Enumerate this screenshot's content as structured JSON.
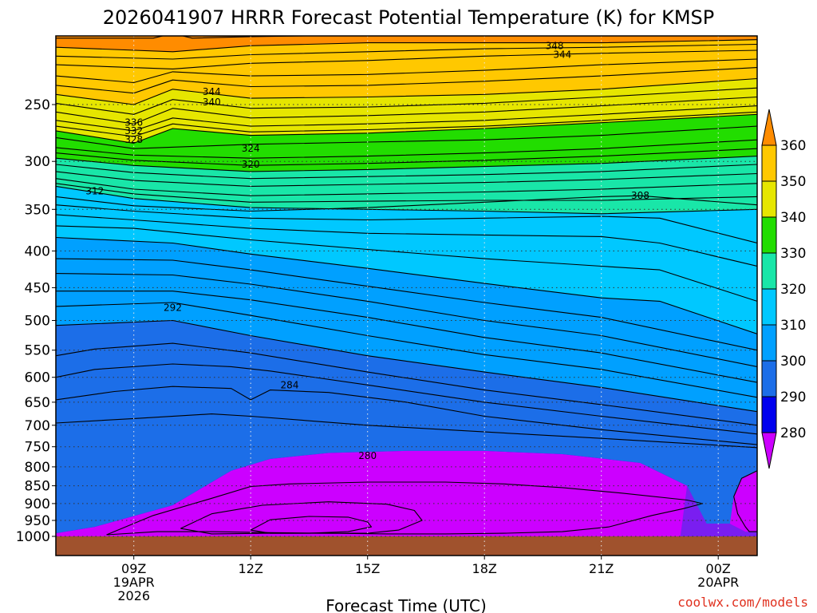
{
  "title": "2026041907 HRRR Forecast Potential Temperature (K) for KMSP",
  "watermark": "coolwx.com/models",
  "colors": {
    "fills": [
      "#cc00ff",
      "#7a1ef0",
      "#0000ee",
      "#1c6ee8",
      "#00a0ff",
      "#00c8ff",
      "#19e6a8",
      "#22dd00",
      "#e6e600",
      "#ffc800",
      "#ff8c00"
    ],
    "ground": "#a0522d",
    "watermark": "#e0301e"
  },
  "chart_data": {
    "type": "time-height contour (filled)",
    "title": "2026041907 HRRR Forecast Potential Temperature (K) for KMSP",
    "xlabel": "Forecast Time (UTC)",
    "ylabel": "",
    "x_range_hours": [
      7,
      25
    ],
    "y_range_hPa": [
      1020,
      200
    ],
    "x_ticks": [
      {
        "hour": 9,
        "label": "09Z",
        "sub1": "19APR",
        "sub2": "2026"
      },
      {
        "hour": 12,
        "label": "12Z",
        "sub1": "",
        "sub2": ""
      },
      {
        "hour": 15,
        "label": "15Z",
        "sub1": "",
        "sub2": ""
      },
      {
        "hour": 18,
        "label": "18Z",
        "sub1": "",
        "sub2": ""
      },
      {
        "hour": 21,
        "label": "21Z",
        "sub1": "",
        "sub2": ""
      },
      {
        "hour": 24,
        "label": "00Z",
        "sub1": "20APR",
        "sub2": ""
      }
    ],
    "y_ticks": [
      250,
      300,
      350,
      400,
      450,
      500,
      550,
      600,
      650,
      700,
      750,
      800,
      850,
      900,
      950,
      1000
    ],
    "grid": "dotted",
    "contour_interval_K": 2,
    "colorbar": {
      "levels": [
        280,
        290,
        300,
        310,
        320,
        330,
        340,
        350,
        360
      ],
      "labels": [
        "360",
        "350",
        "340",
        "330",
        "320",
        "310",
        "300",
        "290",
        "280"
      ]
    },
    "contour_labels": [
      {
        "value": "348",
        "hour": 19.8,
        "hPa": 207
      },
      {
        "value": "344",
        "hour": 20.0,
        "hPa": 213
      },
      {
        "value": "344",
        "hour": 11.0,
        "hPa": 240
      },
      {
        "value": "340",
        "hour": 11.0,
        "hPa": 248
      },
      {
        "value": "336",
        "hour": 9.0,
        "hPa": 265
      },
      {
        "value": "332",
        "hour": 9.0,
        "hPa": 272
      },
      {
        "value": "328",
        "hour": 9.0,
        "hPa": 280
      },
      {
        "value": "324",
        "hour": 12.0,
        "hPa": 288
      },
      {
        "value": "320",
        "hour": 12.0,
        "hPa": 303
      },
      {
        "value": "312",
        "hour": 8.0,
        "hPa": 330
      },
      {
        "value": "308",
        "hour": 22.0,
        "hPa": 335
      },
      {
        "value": "292",
        "hour": 10.0,
        "hPa": 480
      },
      {
        "value": "284",
        "hour": 13.0,
        "hPa": 615
      },
      {
        "value": "280",
        "hour": 15.0,
        "hPa": 772
      }
    ],
    "bands": [
      {
        "level": 350,
        "hours": [
          7,
          10,
          12,
          15,
          18,
          21,
          25
        ],
        "bottom_hPa": [
          208,
          211,
          207,
          205,
          205,
          205,
          203
        ]
      },
      {
        "level": 340,
        "hours": [
          7,
          9,
          10,
          12,
          15,
          18,
          21,
          25
        ],
        "bottom_hPa": [
          242,
          250,
          238,
          245,
          244,
          242,
          238,
          230
        ]
      },
      {
        "level": 330,
        "hours": [
          7,
          9,
          10,
          12,
          15,
          18,
          21,
          25
        ],
        "bottom_hPa": [
          272,
          283,
          270,
          276,
          274,
          270,
          265,
          258
        ]
      },
      {
        "level": 320,
        "hours": [
          7,
          9,
          12,
          15,
          18,
          21,
          25
        ],
        "bottom_hPa": [
          297,
          304,
          310,
          308,
          305,
          302,
          295
        ]
      },
      {
        "level": 310,
        "hours": [
          7,
          9,
          12,
          15,
          18,
          21,
          25
        ],
        "bottom_hPa": [
          325,
          338,
          348,
          350,
          352,
          355,
          350
        ]
      },
      {
        "level": 300,
        "hours": [
          7,
          10,
          12,
          15,
          18,
          21,
          22.5,
          25
        ],
        "bottom_hPa": [
          383,
          390,
          404,
          423,
          444,
          465,
          470,
          522
        ]
      },
      {
        "level": 290,
        "hours": [
          7,
          10,
          12,
          15,
          18,
          21,
          25
        ],
        "bottom_hPa": [
          508,
          500,
          525,
          560,
          590,
          620,
          670
        ]
      },
      {
        "level": 280,
        "hours": [
          7,
          8,
          10,
          11.5,
          12.5,
          14,
          16,
          18,
          20,
          22,
          23.2,
          23.7,
          24.3,
          24.8,
          25
        ],
        "bottom_hPa": [
          990,
          970,
          905,
          810,
          780,
          765,
          760,
          760,
          768,
          790,
          850,
          960,
          960,
          870,
          810
        ]
      }
    ],
    "contour_lines": [
      {
        "value": 354,
        "hours": [
          7,
          9.5,
          10,
          10.5,
          12,
          15,
          18,
          21,
          25
        ],
        "hPa": [
          202,
          202,
          199,
          202,
          201,
          200,
          200,
          200,
          199
        ]
      },
      {
        "value": 350,
        "hours": [
          7,
          10,
          12,
          15,
          18,
          21,
          25
        ],
        "hPa": [
          208,
          211,
          207,
          205,
          205,
          205,
          203
        ]
      },
      {
        "value": 348,
        "hours": [
          7,
          10,
          12,
          15,
          18,
          21,
          25
        ],
        "hPa": [
          214,
          216,
          213,
          211,
          209,
          208,
          206
        ]
      },
      {
        "value": 346,
        "hours": [
          7,
          10,
          12,
          15,
          18,
          21,
          25
        ],
        "hPa": [
          220,
          223,
          219,
          217,
          214,
          212,
          210
        ]
      },
      {
        "value": 344,
        "hours": [
          7,
          9,
          10,
          12,
          15,
          18,
          21,
          25
        ],
        "hPa": [
          228,
          233,
          225,
          228,
          227,
          224,
          220,
          216
        ]
      },
      {
        "value": 342,
        "hours": [
          7,
          9,
          10,
          12,
          15,
          18,
          21,
          25
        ],
        "hPa": [
          235,
          241,
          231,
          236,
          235,
          232,
          228,
          222
        ]
      },
      {
        "value": 340,
        "hours": [
          7,
          9,
          10,
          12,
          15,
          18,
          21,
          25
        ],
        "hPa": [
          242,
          250,
          238,
          245,
          244,
          242,
          238,
          230
        ]
      },
      {
        "value": 338,
        "hours": [
          7,
          9,
          10,
          12,
          15,
          18,
          21,
          25
        ],
        "hPa": [
          249,
          258,
          246,
          253,
          252,
          249,
          244,
          237
        ]
      },
      {
        "value": 336,
        "hours": [
          7,
          9,
          10,
          12,
          15,
          18,
          21,
          25
        ],
        "hPa": [
          256,
          266,
          253,
          261,
          259,
          256,
          251,
          244
        ]
      },
      {
        "value": 334,
        "hours": [
          7,
          9,
          10,
          12,
          15,
          18,
          21,
          25
        ],
        "hPa": [
          263,
          272,
          261,
          268,
          266,
          263,
          258,
          251
        ]
      },
      {
        "value": 332,
        "hours": [
          7,
          9,
          10,
          12,
          15,
          18,
          21,
          25
        ],
        "hPa": [
          268,
          277,
          266,
          273,
          271,
          268,
          263,
          256
        ]
      },
      {
        "value": 330,
        "hours": [
          7,
          9,
          10,
          12,
          15,
          18,
          21,
          25
        ],
        "hPa": [
          272,
          283,
          270,
          276,
          274,
          270,
          265,
          258
        ]
      },
      {
        "value": 328,
        "hours": [
          7,
          9,
          12,
          15,
          18,
          21,
          25
        ],
        "hPa": [
          278,
          288,
          284,
          282,
          280,
          276,
          268
        ]
      },
      {
        "value": 324,
        "hours": [
          7,
          9,
          12,
          15,
          18,
          21,
          25
        ],
        "hPa": [
          287,
          294,
          297,
          295,
          292,
          288,
          280
        ]
      },
      {
        "value": 322,
        "hours": [
          7,
          9,
          12,
          15,
          18,
          21,
          25
        ],
        "hPa": [
          292,
          299,
          304,
          302,
          299,
          295,
          288
        ]
      },
      {
        "value": 320,
        "hours": [
          7,
          9,
          12,
          15,
          18,
          21,
          25
        ],
        "hPa": [
          297,
          304,
          310,
          308,
          305,
          302,
          295
        ]
      },
      {
        "value": 318,
        "hours": [
          7,
          9,
          12,
          15,
          18,
          21,
          25
        ],
        "hPa": [
          303,
          311,
          317,
          315,
          313,
          310,
          303
        ]
      },
      {
        "value": 316,
        "hours": [
          7,
          9,
          12,
          15,
          18,
          21,
          25
        ],
        "hPa": [
          310,
          319,
          325,
          323,
          321,
          318,
          312
        ]
      },
      {
        "value": 314,
        "hours": [
          7,
          9,
          12,
          15,
          18,
          21,
          25
        ],
        "hPa": [
          317,
          328,
          335,
          333,
          331,
          328,
          322
        ]
      },
      {
        "value": 312,
        "hours": [
          7,
          9,
          12,
          15,
          18,
          21,
          25
        ],
        "hPa": [
          322,
          333,
          342,
          341,
          340,
          340,
          336
        ]
      },
      {
        "value": 310,
        "hours": [
          7,
          9,
          12,
          15,
          18,
          21,
          25
        ],
        "hPa": [
          325,
          338,
          348,
          350,
          352,
          355,
          350
        ]
      },
      {
        "value": 308,
        "hours": [
          7,
          9,
          12,
          15,
          18,
          21,
          22,
          25
        ],
        "hPa": [
          336,
          346,
          352,
          348,
          342,
          336,
          335,
          345
        ]
      },
      {
        "value": 306,
        "hours": [
          7,
          9,
          12,
          15,
          18,
          21,
          22.5,
          25
        ],
        "hPa": [
          345,
          352,
          360,
          362,
          360,
          358,
          360,
          390
        ]
      },
      {
        "value": 304,
        "hours": [
          7,
          9,
          12,
          15,
          18,
          21,
          22.5,
          25
        ],
        "hPa": [
          356,
          362,
          372,
          378,
          380,
          382,
          390,
          420
        ]
      },
      {
        "value": 302,
        "hours": [
          7,
          9,
          12,
          15,
          18,
          21,
          22.5,
          25
        ],
        "hPa": [
          369,
          372,
          386,
          398,
          410,
          420,
          425,
          470
        ]
      },
      {
        "value": 300,
        "hours": [
          7,
          10,
          12,
          15,
          18,
          21,
          22.5,
          25
        ],
        "hPa": [
          383,
          390,
          404,
          423,
          444,
          465,
          470,
          522
        ]
      },
      {
        "value": 298,
        "hours": [
          7,
          10,
          12,
          15,
          18,
          21,
          25
        ],
        "hPa": [
          410,
          412,
          425,
          448,
          472,
          495,
          550
        ]
      },
      {
        "value": 296,
        "hours": [
          7,
          10,
          12,
          15,
          18,
          21,
          25
        ],
        "hPa": [
          430,
          432,
          445,
          470,
          500,
          525,
          580
        ]
      },
      {
        "value": 294,
        "hours": [
          7,
          10,
          12,
          15,
          18,
          21,
          25
        ],
        "hPa": [
          455,
          455,
          468,
          495,
          528,
          555,
          610
        ]
      },
      {
        "value": 292,
        "hours": [
          7,
          10,
          12,
          15,
          18,
          21,
          25
        ],
        "hPa": [
          478,
          472,
          492,
          525,
          558,
          585,
          640
        ]
      },
      {
        "value": 290,
        "hours": [
          7,
          10,
          12,
          15,
          18,
          21,
          25
        ],
        "hPa": [
          508,
          500,
          525,
          560,
          590,
          620,
          670
        ]
      },
      {
        "value": 288,
        "hours": [
          7,
          8,
          10,
          12,
          15,
          18,
          21,
          25
        ],
        "hPa": [
          560,
          548,
          538,
          555,
          590,
          625,
          655,
          700
        ]
      },
      {
        "value": 286,
        "hours": [
          7,
          8,
          10,
          11.5,
          12.5,
          15,
          18,
          21,
          25
        ],
        "hPa": [
          600,
          585,
          575,
          580,
          588,
          615,
          650,
          680,
          720
        ]
      },
      {
        "value": 284,
        "hours": [
          7,
          8.5,
          10,
          11.5,
          12,
          12.5,
          14,
          16,
          18,
          21,
          25
        ],
        "hPa": [
          645,
          628,
          618,
          622,
          645,
          625,
          630,
          650,
          680,
          710,
          745
        ]
      },
      {
        "value": 282,
        "hours": [
          7,
          9,
          11,
          12,
          15,
          18,
          21,
          25
        ],
        "hPa": [
          695,
          685,
          675,
          680,
          700,
          715,
          730,
          752
        ]
      },
      {
        "value": 278,
        "hours": [
          8.3,
          9.5,
          11,
          12,
          13,
          15,
          17,
          18.5,
          20,
          21.5,
          23.2,
          23.6,
          23.1,
          22.3,
          21.2,
          20,
          18.5,
          17,
          15.5,
          14,
          12.5,
          11,
          9.6,
          8.3
        ],
        "hPa": [
          995,
          935,
          885,
          852,
          845,
          840,
          840,
          845,
          855,
          870,
          890,
          900,
          915,
          935,
          970,
          985,
          990,
          992,
          992,
          990,
          988,
          985,
          985,
          995
        ]
      },
      {
        "value": 276,
        "hours": [
          10.2,
          11,
          12.3,
          14,
          15.5,
          16.2,
          16.4,
          15.8,
          15,
          14,
          12.5,
          11,
          10.2
        ],
        "hPa": [
          975,
          930,
          905,
          895,
          902,
          920,
          950,
          980,
          990,
          990,
          990,
          992,
          975
        ]
      },
      {
        "value": 274,
        "hours": [
          12,
          12.5,
          13.5,
          14.5,
          15,
          15.1,
          14.5,
          13.5,
          12.5,
          12
        ],
        "hPa": [
          980,
          948,
          938,
          940,
          955,
          970,
          985,
          990,
          990,
          980
        ]
      },
      {
        "value": 278,
        "hours": [
          25,
          24.6,
          24.4,
          24.5,
          24.7,
          24.8,
          25
        ],
        "hPa": [
          810,
          830,
          880,
          930,
          970,
          985,
          985
        ]
      }
    ]
  }
}
